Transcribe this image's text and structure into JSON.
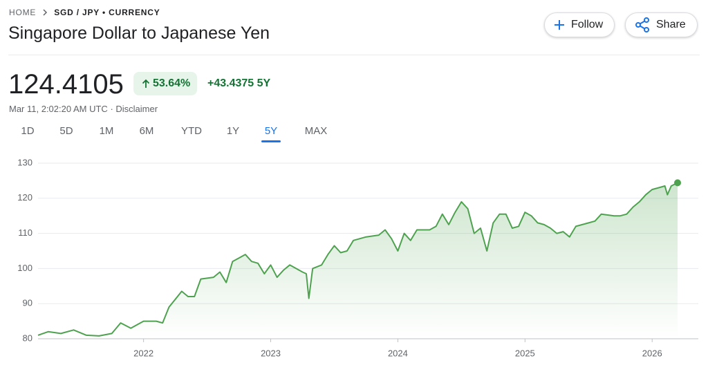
{
  "header": {
    "breadcrumb": [
      "HOME",
      "SGD / JPY • CURRENCY"
    ],
    "title": "Singapore Dollar to Japanese Yen",
    "buttons": [
      "Follow",
      "Share"
    ]
  },
  "quote": {
    "price": "124.4105",
    "change_percent": "53.64%",
    "change": "+43.4375 5Y",
    "timestamp": "Mar 11, 2:02:20 AM UTC",
    "disclaimer": "Disclaimer"
  },
  "tabs": [
    "1D",
    "5D",
    "1M",
    "6M",
    "YTD",
    "1Y",
    "5Y",
    "MAX"
  ],
  "selected_tab": "5Y",
  "chart_data": {
    "type": "line",
    "color": "#4ea24f",
    "x": [
      2021.17,
      2021.25,
      2021.35,
      2021.45,
      2021.55,
      2021.65,
      2021.75,
      2021.82,
      2021.9,
      2022.0,
      2022.1,
      2022.15,
      2022.2,
      2022.3,
      2022.35,
      2022.4,
      2022.45,
      2022.55,
      2022.6,
      2022.65,
      2022.7,
      2022.75,
      2022.8,
      2022.85,
      2022.9,
      2022.95,
      2023.0,
      2023.05,
      2023.1,
      2023.15,
      2023.25,
      2023.28,
      2023.3,
      2023.33,
      2023.4,
      2023.45,
      2023.5,
      2023.55,
      2023.6,
      2023.65,
      2023.75,
      2023.85,
      2023.9,
      2023.95,
      2024.0,
      2024.05,
      2024.1,
      2024.15,
      2024.25,
      2024.3,
      2024.35,
      2024.4,
      2024.45,
      2024.5,
      2024.55,
      2024.6,
      2024.65,
      2024.7,
      2024.75,
      2024.8,
      2024.85,
      2024.9,
      2024.95,
      2025.0,
      2025.05,
      2025.1,
      2025.15,
      2025.2,
      2025.25,
      2025.3,
      2025.35,
      2025.4,
      2025.5,
      2025.55,
      2025.6,
      2025.7,
      2025.75,
      2025.8,
      2025.85,
      2025.9,
      2025.95,
      2026.0,
      2026.05,
      2026.1,
      2026.12,
      2026.15,
      2026.2
    ],
    "values": [
      81,
      82,
      81.5,
      82.5,
      81,
      80.8,
      81.5,
      84.5,
      83,
      85,
      85,
      84.5,
      89,
      93.5,
      92,
      92,
      97,
      97.5,
      99,
      96,
      102,
      103,
      104,
      102,
      101.5,
      98.5,
      101,
      97.5,
      99.5,
      101,
      99,
      98.5,
      91.5,
      100,
      101,
      104,
      106.5,
      104.5,
      105,
      108,
      109,
      109.5,
      111,
      108.5,
      105,
      110,
      108,
      111,
      111,
      112,
      115.5,
      112.5,
      116,
      119,
      117,
      110,
      111.5,
      105,
      113,
      115.5,
      115.5,
      111.5,
      112,
      116,
      115,
      113,
      112.5,
      111.5,
      110,
      110.5,
      109,
      112,
      113,
      113.5,
      115.5,
      115,
      115,
      115.5,
      117.5,
      119,
      121,
      122.5,
      123,
      123.5,
      121,
      123.5,
      124.4105
    ],
    "xlim": [
      2021.17,
      2026.2
    ],
    "xticks": [
      2022,
      2023,
      2024,
      2025,
      2026
    ],
    "ylim": [
      80,
      130
    ],
    "yticks": [
      80,
      90,
      100,
      110,
      120,
      130
    ],
    "grid": true
  }
}
